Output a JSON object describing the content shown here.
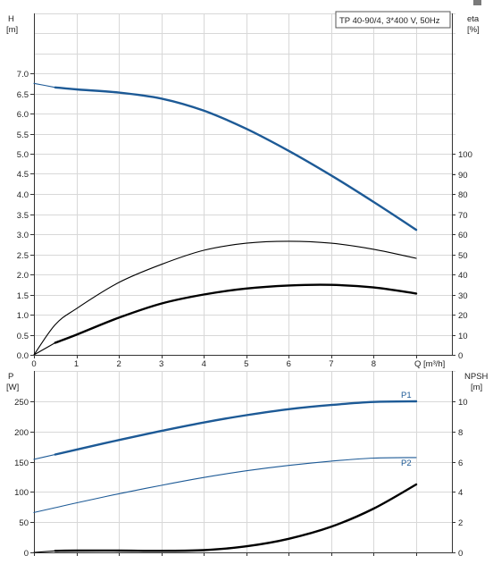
{
  "title_box": "TP 40-90/4, 3*400 V, 50Hz",
  "chart_data": [
    {
      "type": "line",
      "name": "top",
      "xlabel": "Q [m³/h]",
      "xlim": [
        0,
        9
      ],
      "x_ticks": [
        "0",
        "1",
        "2",
        "3",
        "4",
        "5",
        "6",
        "7",
        "8",
        "Q [m³/h]"
      ],
      "y_left": {
        "label_1": "H",
        "label_2": "[m]",
        "lim": [
          0,
          7.0
        ],
        "ticks": [
          "0.0",
          "0.5",
          "1.0",
          "1.5",
          "2.0",
          "2.5",
          "3.0",
          "3.5",
          "4.0",
          "4.5",
          "5.0",
          "5.5",
          "6.0",
          "6.5",
          "7.0"
        ]
      },
      "y_right": {
        "label_1": "eta",
        "label_2": "[%]",
        "lim": [
          0,
          100
        ],
        "ticks": [
          "0",
          "10",
          "20",
          "30",
          "40",
          "50",
          "60",
          "70",
          "80",
          "90",
          "100"
        ]
      },
      "series": [
        {
          "axis": "left",
          "color": "#1d5a96",
          "style": "thick",
          "x": [
            0.5,
            1,
            2,
            3,
            4,
            5,
            6,
            7,
            8,
            9
          ],
          "y": [
            6.65,
            6.6,
            6.52,
            6.37,
            6.07,
            5.62,
            5.07,
            4.46,
            3.8,
            3.11
          ]
        },
        {
          "axis": "left",
          "color": "#1d5a96",
          "style": "thin",
          "x": [
            0,
            0.5
          ],
          "y": [
            6.75,
            6.65
          ]
        },
        {
          "axis": "right",
          "color": "#000000",
          "style": "thin",
          "x": [
            0,
            0.5,
            1,
            2,
            3,
            4,
            5,
            6,
            7,
            8,
            9
          ],
          "y": [
            0,
            15,
            23,
            36,
            45,
            52,
            55.5,
            56.5,
            55.5,
            52.5,
            48
          ]
        },
        {
          "axis": "right",
          "color": "#000000",
          "style": "thick",
          "x": [
            0.5,
            1,
            2,
            3,
            4,
            5,
            6,
            7,
            8,
            9
          ],
          "y": [
            6,
            10,
            18.5,
            25.5,
            30,
            33,
            34.5,
            34.8,
            33.5,
            30.5
          ]
        },
        {
          "axis": "right",
          "color": "#000000",
          "style": "thin",
          "x": [
            0,
            0.5
          ],
          "y": [
            0,
            6
          ]
        }
      ]
    },
    {
      "type": "line",
      "name": "bottom",
      "xlim": [
        0,
        9
      ],
      "y_left": {
        "label_1": "P",
        "label_2": "[W]",
        "lim": [
          0,
          250
        ],
        "ticks": [
          "0",
          "50",
          "100",
          "150",
          "200",
          "250"
        ]
      },
      "y_right": {
        "label_1": "NPSH",
        "label_2": "[m]",
        "lim": [
          0,
          10
        ],
        "ticks": [
          "0",
          "2",
          "4",
          "6",
          "8",
          "10"
        ]
      },
      "series": [
        {
          "name": "P1",
          "axis": "left",
          "color": "#1d5a96",
          "style": "thick",
          "x": [
            0.5,
            1,
            2,
            3,
            4,
            5,
            6,
            7,
            8,
            9
          ],
          "y": [
            162,
            170,
            186,
            201,
            215,
            227,
            237,
            244,
            249,
            250
          ]
        },
        {
          "axis": "left",
          "color": "#1d5a96",
          "style": "thin",
          "x": [
            0,
            0.5
          ],
          "y": [
            154,
            162
          ]
        },
        {
          "name": "P2",
          "axis": "left",
          "color": "#1d5a96",
          "style": "thin",
          "x": [
            0,
            0.5,
            1,
            2,
            3,
            4,
            5,
            6,
            7,
            8,
            9
          ],
          "y": [
            66,
            74,
            82,
            97,
            111,
            124,
            135,
            144,
            151,
            156,
            157
          ]
        },
        {
          "axis": "right",
          "color": "#000000",
          "style": "thick",
          "x": [
            0.5,
            1,
            2,
            3,
            4,
            5,
            6,
            7,
            8,
            9
          ],
          "y": [
            0.1,
            0.12,
            0.12,
            0.1,
            0.15,
            0.4,
            0.9,
            1.7,
            2.9,
            4.5
          ]
        },
        {
          "axis": "right",
          "color": "#000000",
          "style": "thin",
          "x": [
            0,
            0.5
          ],
          "y": [
            0,
            0.1
          ]
        }
      ]
    }
  ]
}
